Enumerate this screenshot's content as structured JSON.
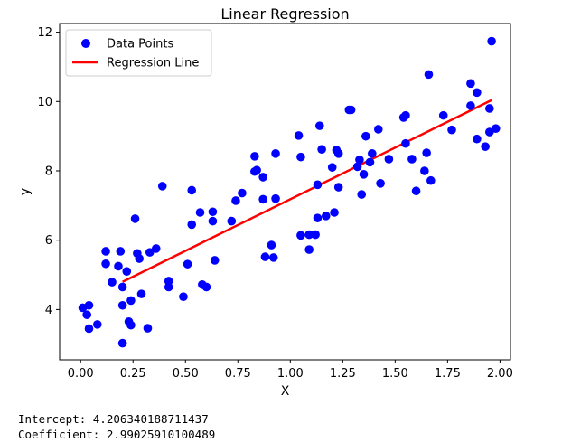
{
  "chart_data": {
    "type": "scatter",
    "title": "Linear Regression",
    "xlabel": "X",
    "ylabel": "y",
    "xlim": [
      -0.1,
      2.05
    ],
    "ylim": [
      2.55,
      12.25
    ],
    "xticks": [
      "0.00",
      "0.25",
      "0.50",
      "0.75",
      "1.00",
      "1.25",
      "1.50",
      "1.75",
      "2.00"
    ],
    "xtick_values": [
      0,
      0.25,
      0.5,
      0.75,
      1.0,
      1.25,
      1.5,
      1.75,
      2.0
    ],
    "yticks": [
      "4",
      "6",
      "8",
      "10",
      "12"
    ],
    "ytick_values": [
      4,
      6,
      8,
      10,
      12
    ],
    "grid": false,
    "legend": {
      "position": "top-left",
      "entries": [
        "Data Points",
        "Regression Line"
      ]
    },
    "series": [
      {
        "name": "Data Points",
        "kind": "scatter",
        "color": "#0000ff",
        "points": [
          [
            0.01,
            4.05
          ],
          [
            0.04,
            4.12
          ],
          [
            0.03,
            3.85
          ],
          [
            0.04,
            3.45
          ],
          [
            0.08,
            3.57
          ],
          [
            0.12,
            5.68
          ],
          [
            0.12,
            5.32
          ],
          [
            0.15,
            4.79
          ],
          [
            0.18,
            5.25
          ],
          [
            0.19,
            5.68
          ],
          [
            0.2,
            4.65
          ],
          [
            0.2,
            4.12
          ],
          [
            0.22,
            5.1
          ],
          [
            0.24,
            4.26
          ],
          [
            0.23,
            3.65
          ],
          [
            0.24,
            3.55
          ],
          [
            0.2,
            3.03
          ],
          [
            0.26,
            6.62
          ],
          [
            0.27,
            5.62
          ],
          [
            0.28,
            5.47
          ],
          [
            0.29,
            4.45
          ],
          [
            0.32,
            3.46
          ],
          [
            0.33,
            5.65
          ],
          [
            0.36,
            5.76
          ],
          [
            0.39,
            7.56
          ],
          [
            0.42,
            4.82
          ],
          [
            0.42,
            4.65
          ],
          [
            0.49,
            4.37
          ],
          [
            0.51,
            5.31
          ],
          [
            0.53,
            6.45
          ],
          [
            0.53,
            7.44
          ],
          [
            0.57,
            6.8
          ],
          [
            0.58,
            4.72
          ],
          [
            0.6,
            4.65
          ],
          [
            0.63,
            6.55
          ],
          [
            0.63,
            6.82
          ],
          [
            0.64,
            5.42
          ],
          [
            0.72,
            6.55
          ],
          [
            0.74,
            7.14
          ],
          [
            0.77,
            7.36
          ],
          [
            0.83,
            7.98
          ],
          [
            0.83,
            8.42
          ],
          [
            0.84,
            8.02
          ],
          [
            0.87,
            7.82
          ],
          [
            0.87,
            7.18
          ],
          [
            0.88,
            5.52
          ],
          [
            0.91,
            5.86
          ],
          [
            0.92,
            5.5
          ],
          [
            0.93,
            7.2
          ],
          [
            0.93,
            8.5
          ],
          [
            1.04,
            9.02
          ],
          [
            1.05,
            6.14
          ],
          [
            1.05,
            8.4
          ],
          [
            1.09,
            5.73
          ],
          [
            1.09,
            6.16
          ],
          [
            1.12,
            6.16
          ],
          [
            1.13,
            6.64
          ],
          [
            1.13,
            7.6
          ],
          [
            1.14,
            9.3
          ],
          [
            1.15,
            8.62
          ],
          [
            1.17,
            6.7
          ],
          [
            1.2,
            8.1
          ],
          [
            1.21,
            6.8
          ],
          [
            1.22,
            8.6
          ],
          [
            1.23,
            7.53
          ],
          [
            1.23,
            8.5
          ],
          [
            1.28,
            9.76
          ],
          [
            1.29,
            9.76
          ],
          [
            1.32,
            8.12
          ],
          [
            1.33,
            8.32
          ],
          [
            1.34,
            7.32
          ],
          [
            1.35,
            7.9
          ],
          [
            1.36,
            9.0
          ],
          [
            1.38,
            8.25
          ],
          [
            1.39,
            8.5
          ],
          [
            1.42,
            9.2
          ],
          [
            1.43,
            7.64
          ],
          [
            1.47,
            8.34
          ],
          [
            1.54,
            9.54
          ],
          [
            1.55,
            9.6
          ],
          [
            1.55,
            8.79
          ],
          [
            1.58,
            8.34
          ],
          [
            1.6,
            7.42
          ],
          [
            1.64,
            8.0
          ],
          [
            1.65,
            8.52
          ],
          [
            1.66,
            10.78
          ],
          [
            1.67,
            7.72
          ],
          [
            1.73,
            9.6
          ],
          [
            1.77,
            9.18
          ],
          [
            1.86,
            10.52
          ],
          [
            1.86,
            9.88
          ],
          [
            1.89,
            10.26
          ],
          [
            1.89,
            8.92
          ],
          [
            1.93,
            8.7
          ],
          [
            1.95,
            9.12
          ],
          [
            1.95,
            9.8
          ],
          [
            1.96,
            11.74
          ],
          [
            1.98,
            9.22
          ]
        ]
      },
      {
        "name": "Regression Line",
        "kind": "line",
        "color": "#ff0000",
        "points": [
          [
            0.2,
            4.8
          ],
          [
            1.96,
            10.04
          ]
        ]
      }
    ]
  },
  "output": {
    "intercept_line": "Intercept: 4.206340188711437",
    "coefficient_line": "Coefficient: 2.99025910100489"
  }
}
